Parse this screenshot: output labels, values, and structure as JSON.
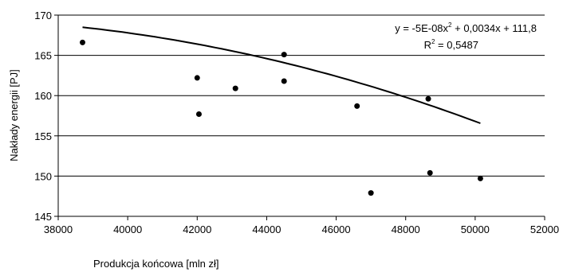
{
  "chart_data": {
    "type": "scatter",
    "xlabel": "Produkcja końcowa [mln zł]",
    "ylabel": "Nakłady energii [PJ]",
    "xlim": [
      38000,
      52000
    ],
    "ylim": [
      145,
      170
    ],
    "x_ticks": [
      "38000",
      "40000",
      "42000",
      "44000",
      "46000",
      "48000",
      "50000",
      "52000"
    ],
    "y_ticks": [
      "145",
      "150",
      "155",
      "160",
      "165",
      "170"
    ],
    "grid": "horizontal",
    "series": [
      {
        "points": [
          {
            "x": 38700,
            "y": 166.6
          },
          {
            "x": 42000,
            "y": 162.2
          },
          {
            "x": 42050,
            "y": 157.7
          },
          {
            "x": 43100,
            "y": 160.9
          },
          {
            "x": 44500,
            "y": 165.1
          },
          {
            "x": 44500,
            "y": 161.8
          },
          {
            "x": 46600,
            "y": 158.7
          },
          {
            "x": 47000,
            "y": 147.9
          },
          {
            "x": 48650,
            "y": 159.6
          },
          {
            "x": 48700,
            "y": 150.4
          },
          {
            "x": 50150,
            "y": 149.7
          }
        ]
      }
    ],
    "trendline": {
      "type": "polynomial",
      "coefficients": {
        "a": -5e-08,
        "b": 0.0034,
        "c": 111.8
      },
      "x_range": [
        38700,
        50150
      ],
      "equation_prefix": "y = -5E-08x",
      "equation_exp": "2",
      "equation_suffix": " + 0,0034x + 111,8",
      "r2_prefix": "R",
      "r2_exp": "2",
      "r2_suffix": " = 0,5487"
    }
  }
}
